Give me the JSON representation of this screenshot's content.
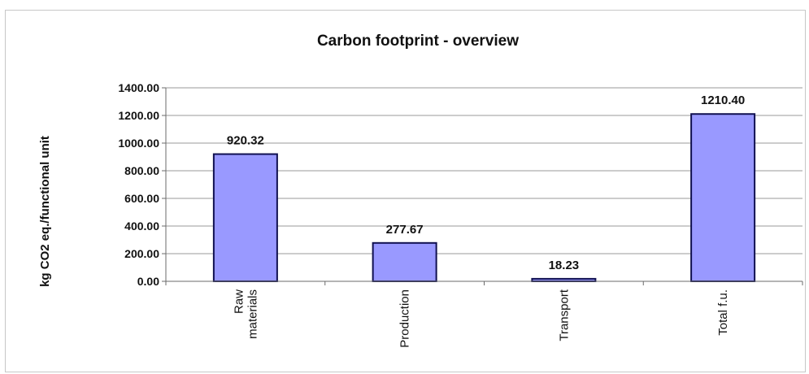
{
  "chart_data": {
    "type": "bar",
    "title": "Carbon footprint - overview",
    "xlabel": "",
    "ylabel": "kg CO2 eq./functional unit",
    "categories": [
      [
        "Raw",
        "materials"
      ],
      [
        "Production"
      ],
      [
        "Transport"
      ],
      [
        "Total f.u."
      ]
    ],
    "values": [
      920.32,
      277.67,
      18.23,
      1210.4
    ],
    "data_labels": [
      "920.32",
      "277.67",
      "18.23",
      "1210.40"
    ],
    "ylim": [
      0,
      1400
    ],
    "yticks": [
      "0.00",
      "200.00",
      "400.00",
      "600.00",
      "800.00",
      "1000.00",
      "1200.00",
      "1400.00"
    ],
    "ytick_values": [
      0,
      200,
      400,
      600,
      800,
      1000,
      1200,
      1400
    ],
    "grid": true,
    "legend": "none",
    "bar_color": "#9999ff",
    "bar_edge_color": "#101050"
  }
}
